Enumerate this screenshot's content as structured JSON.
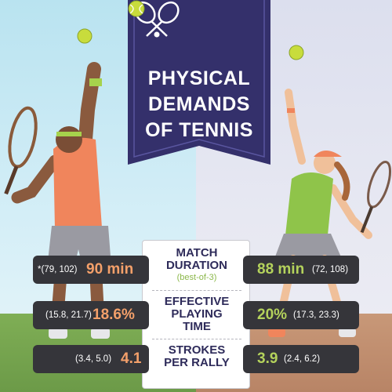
{
  "banner": {
    "title_lines": [
      "PHYSICAL",
      "DEMANDS",
      "OF TENNIS"
    ],
    "icon": "crossed-rackets-icon",
    "color": "#34306b"
  },
  "colors": {
    "male_value": "#f4a06a",
    "female_value": "#b4d25c",
    "pill_bg": "#35353a",
    "label": "#2e2b5a"
  },
  "metrics": [
    {
      "label_lines": [
        "MATCH",
        "DURATION"
      ],
      "sub": "(best-of-3)",
      "male": {
        "value": "90 min",
        "ci": "*(79, 102)"
      },
      "female": {
        "value": "88 min",
        "ci": "(72, 108)"
      }
    },
    {
      "label_lines": [
        "EFFECTIVE",
        "PLAYING",
        "TIME"
      ],
      "male": {
        "value": "18.6%",
        "ci": "(15.8, 21.7)"
      },
      "female": {
        "value": "20%",
        "ci": "(17.3, 23.3)"
      }
    },
    {
      "label_lines": [
        "STROKES",
        "PER RALLY"
      ],
      "male": {
        "value": "4.1",
        "ci": "(3.4, 5.0)"
      },
      "female": {
        "value": "3.9",
        "ci": "(2.4, 6.2)"
      }
    }
  ]
}
